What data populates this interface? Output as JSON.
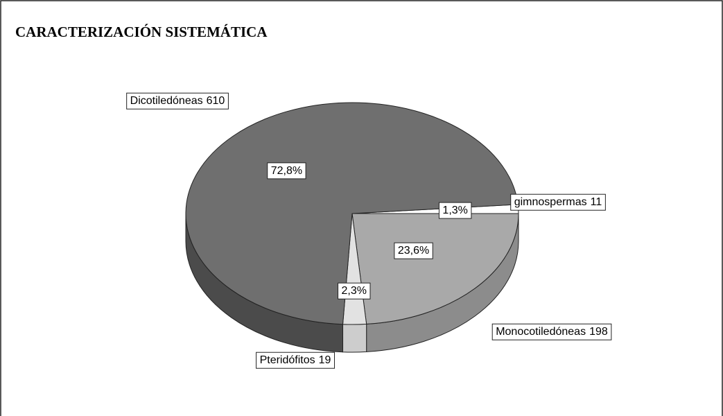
{
  "chart_data": {
    "type": "pie",
    "title": "CARACTERIZACIÓN SISTEMÁTICA",
    "categories": [
      "gimnospermas",
      "Monocotiledóneas",
      "Pteridófitos",
      "Dicotiledóneas"
    ],
    "values": [
      11,
      198,
      19,
      610
    ],
    "percentages": [
      1.3,
      23.6,
      2.3,
      72.8
    ],
    "percent_labels": [
      "1,3%",
      "23,6%",
      "2,3%",
      "72,8%"
    ],
    "colors": [
      "#ffffff",
      "#a9a9a9",
      "#e2e2e2",
      "#6f6f6f"
    ],
    "side_colors": [
      "#f0f0f0",
      "#8c8c8c",
      "#cdcdcd",
      "#4b4b4b"
    ]
  }
}
